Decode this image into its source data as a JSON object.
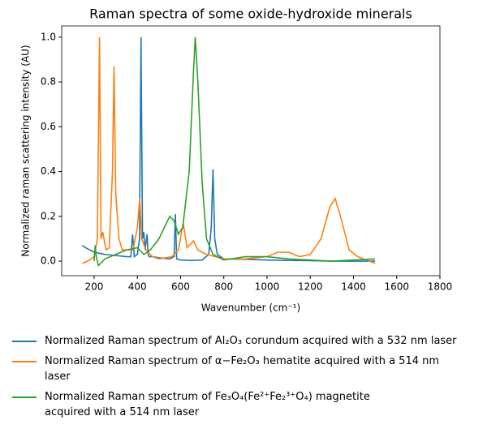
{
  "chart_data": {
    "type": "line",
    "title": "Raman spectra of some oxide-hydroxide minerals",
    "xlabel": "Wavenumber (cm⁻¹)",
    "ylabel": "Normalized raman scattering intensity (AU)",
    "xlim": [
      50,
      1800
    ],
    "ylim": [
      -0.065,
      1.05
    ],
    "xticks": [
      200,
      400,
      600,
      800,
      1000,
      1200,
      1400,
      1600,
      1800
    ],
    "yticks": [
      {
        "value": 0,
        "label": "0.0"
      },
      0.2,
      0.4,
      0.6,
      0.8,
      {
        "value": 1,
        "label": "1.0"
      }
    ],
    "series": [
      {
        "name": "Normalized Raman spectrum of Al₂O₃ corundum acquired with a 532 nm laser",
        "color": "#1f77b4",
        "x": [
          145,
          160,
          200,
          250,
          300,
          350,
          370,
          378,
          386,
          400,
          410,
          417,
          424,
          430,
          436,
          445,
          450,
          455,
          470,
          500,
          550,
          570,
          576,
          582,
          600,
          650,
          700,
          730,
          742,
          750,
          758,
          770,
          800,
          900,
          1000,
          1100,
          1200,
          1300,
          1400,
          1500
        ],
        "values": [
          0.07,
          0.06,
          0.04,
          0.03,
          0.025,
          0.02,
          0.02,
          0.12,
          0.02,
          0.03,
          0.1,
          1.0,
          0.1,
          0.13,
          0.05,
          0.12,
          0.03,
          0.02,
          0.02,
          0.015,
          0.01,
          0.02,
          0.21,
          0.01,
          0.005,
          0.003,
          0.005,
          0.03,
          0.15,
          0.41,
          0.1,
          0.03,
          0.01,
          0.008,
          0.005,
          0.003,
          0.002,
          0.0,
          0.0,
          0.0
        ]
      },
      {
        "name": "Normalized Raman spectrum of α−Fe₂O₃ hematite acquired with a 514 nm\nlaser",
        "color": "#ff7f0e",
        "x": [
          145,
          170,
          200,
          215,
          225,
          232,
          240,
          255,
          270,
          285,
          292,
          300,
          315,
          330,
          380,
          400,
          411,
          420,
          440,
          470,
          500,
          560,
          590,
          612,
          630,
          660,
          680,
          720,
          800,
          900,
          1000,
          1050,
          1100,
          1150,
          1200,
          1250,
          1290,
          1315,
          1340,
          1380,
          1420,
          1500
        ],
        "values": [
          -0.01,
          0.0,
          0.02,
          0.1,
          1.0,
          0.1,
          0.13,
          0.05,
          0.06,
          0.4,
          0.87,
          0.3,
          0.1,
          0.05,
          0.05,
          0.15,
          0.28,
          0.1,
          0.05,
          0.02,
          0.01,
          0.02,
          0.05,
          0.17,
          0.06,
          0.09,
          0.05,
          0.03,
          0.01,
          0.01,
          0.02,
          0.04,
          0.04,
          0.02,
          0.03,
          0.1,
          0.24,
          0.28,
          0.2,
          0.05,
          0.02,
          -0.01
        ]
      },
      {
        "name": "Normalized Raman spectrum of Fe₃O₄(Fe²⁺Fe₂³⁺O₄) magnetite\nacquired with a 514 nm laser",
        "color": "#2ca02c",
        "x": [
          200,
          205,
          210,
          220,
          250,
          300,
          350,
          400,
          430,
          460,
          500,
          540,
          550,
          570,
          590,
          610,
          640,
          660,
          668,
          680,
          700,
          720,
          750,
          800,
          900,
          1000,
          1100,
          1200,
          1300,
          1400,
          1500
        ],
        "values": [
          0.0,
          0.07,
          0.02,
          -0.02,
          0.01,
          0.03,
          0.05,
          0.06,
          0.03,
          0.05,
          0.1,
          0.18,
          0.2,
          0.18,
          0.12,
          0.15,
          0.4,
          0.85,
          1.0,
          0.8,
          0.35,
          0.1,
          0.03,
          0.005,
          0.02,
          0.02,
          0.01,
          0.005,
          0.0,
          0.005,
          0.01
        ]
      }
    ]
  }
}
